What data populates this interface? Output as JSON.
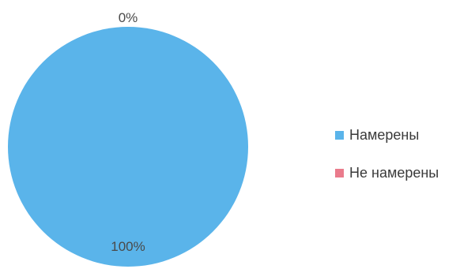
{
  "chart_data": {
    "type": "pie",
    "series": [
      {
        "slices": [
          {
            "label": "Намерены",
            "value": 100,
            "data_label": "100%",
            "color": "#5ab4ea"
          },
          {
            "label": "Не намерены",
            "value": 0,
            "data_label": "0%",
            "color": "#ea7b8c"
          }
        ]
      }
    ],
    "legend_position": "right"
  }
}
